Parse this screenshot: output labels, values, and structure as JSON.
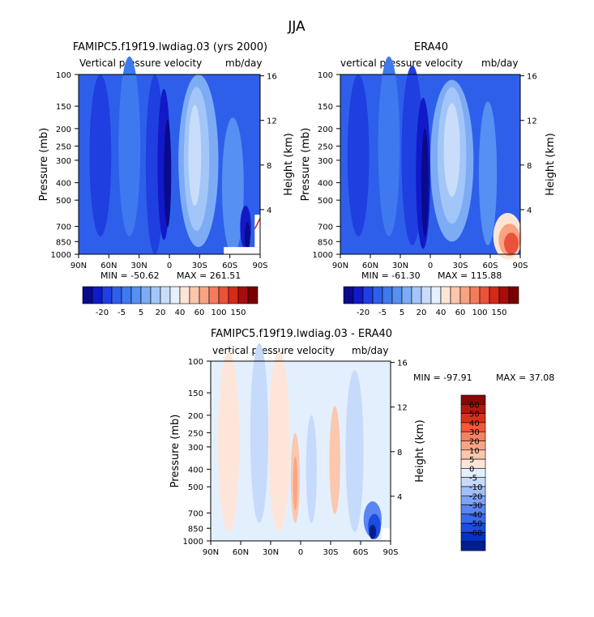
{
  "page_title": "JJA",
  "colors": {
    "top": [
      "#0a0a8c",
      "#1219c8",
      "#1f3fe0",
      "#2e5fea",
      "#3e79ef",
      "#5690f2",
      "#7dacf5",
      "#a3c6f8",
      "#c9ddfb",
      "#e6f0fe",
      "#fde5d6",
      "#fbc6ac",
      "#f9a383",
      "#f47c5c",
      "#ea5239",
      "#d42a1a",
      "#a80d0d",
      "#780000"
    ],
    "diff": [
      "#001f8c",
      "#0032c8",
      "#1a4de0",
      "#3a69ec",
      "#5a85f2",
      "#7ea2f6",
      "#a2bff9",
      "#c6dafc",
      "#e4effe",
      "#fde6d9",
      "#fbc7ad",
      "#f9a584",
      "#f5825f",
      "#ee5a3a",
      "#d8321d",
      "#b41711",
      "#880808"
    ]
  },
  "chart_data": [
    {
      "id": "model",
      "type": "heatmap",
      "title": "FAMIPC5.f19f19.lwdiag.03 (yrs 2000)",
      "subtitle": "Vertical pressure velocity",
      "units": "mb/day",
      "ylabel": "Pressure (mb)",
      "y2label": "Height (km)",
      "x_ticks": [
        "90N",
        "60N",
        "30N",
        "0",
        "30S",
        "60S",
        "90S"
      ],
      "x_range": [
        90,
        -90
      ],
      "y_ticks": [
        "100",
        "150",
        "200",
        "250",
        "300",
        "400",
        "500",
        "700",
        "850",
        "1000"
      ],
      "y_tick_values": [
        100,
        150,
        200,
        250,
        300,
        400,
        500,
        700,
        850,
        1000
      ],
      "y2_ticks": [
        "16",
        "12",
        "8",
        "4"
      ],
      "y2_tick_values": [
        16,
        12,
        8,
        4
      ],
      "min_label": "MIN = -50.62",
      "max_label": "MAX = 261.51",
      "colorbar_labels": [
        "-20",
        "-5",
        "5",
        "20",
        "40",
        "60",
        "100",
        "150"
      ]
    },
    {
      "id": "obs",
      "type": "heatmap",
      "title": "ERA40",
      "subtitle": "vertical pressure velocity",
      "units": "mb/day",
      "ylabel": "Pressure (mb)",
      "y2label": "Height (km)",
      "x_ticks": [
        "90N",
        "60N",
        "30N",
        "0",
        "30S",
        "60S",
        "90S"
      ],
      "x_range": [
        90,
        -90
      ],
      "y_ticks": [
        "100",
        "150",
        "200",
        "250",
        "300",
        "400",
        "500",
        "700",
        "850",
        "1000"
      ],
      "y_tick_values": [
        100,
        150,
        200,
        250,
        300,
        400,
        500,
        700,
        850,
        1000
      ],
      "y2_ticks": [
        "16",
        "12",
        "8",
        "4"
      ],
      "y2_tick_values": [
        16,
        12,
        8,
        4
      ],
      "min_label": "MIN = -61.30",
      "max_label": "MAX = 115.88",
      "colorbar_labels": [
        "-20",
        "-5",
        "5",
        "20",
        "40",
        "60",
        "100",
        "150"
      ]
    },
    {
      "id": "diff",
      "type": "heatmap",
      "title": "FAMIPC5.f19f19.lwdiag.03 - ERA40",
      "subtitle": "vertical pressure velocity",
      "units": "mb/day",
      "ylabel": "Pressure (mb)",
      "y2label": "Height (km)",
      "x_ticks": [
        "90N",
        "60N",
        "30N",
        "0",
        "30S",
        "60S",
        "90S"
      ],
      "x_range": [
        90,
        -90
      ],
      "y_ticks": [
        "100",
        "150",
        "200",
        "250",
        "300",
        "400",
        "500",
        "700",
        "850",
        "1000"
      ],
      "y_tick_values": [
        100,
        150,
        200,
        250,
        300,
        400,
        500,
        700,
        850,
        1000
      ],
      "y2_ticks": [
        "16",
        "12",
        "8",
        "4"
      ],
      "y2_tick_values": [
        16,
        12,
        8,
        4
      ],
      "min_label": "MIN = -97.91",
      "max_label": "MAX = 37.08",
      "colorbar_labels": [
        "60",
        "50",
        "40",
        "30",
        "20",
        "10",
        "5",
        "0",
        "-5",
        "-10",
        "-20",
        "-30",
        "-40",
        "-50",
        "-60"
      ]
    }
  ]
}
